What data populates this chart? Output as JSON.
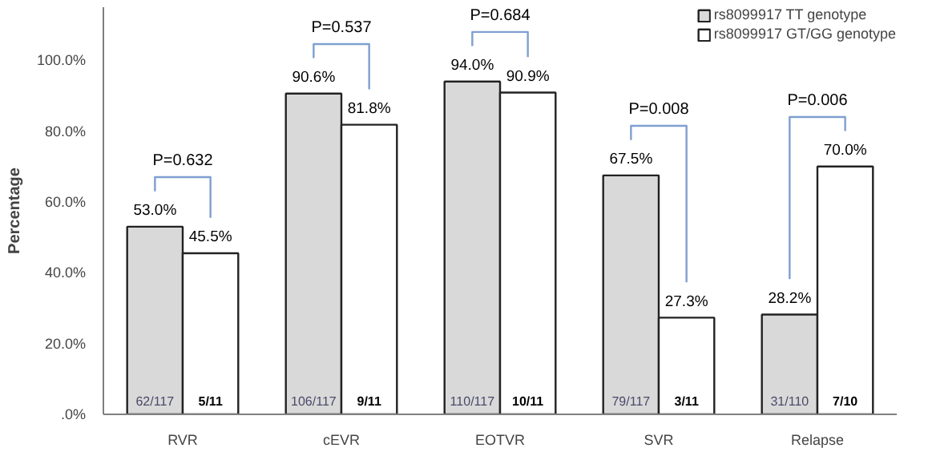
{
  "chart_data": {
    "type": "bar",
    "ylabel": "Percentage",
    "categories": [
      "RVR",
      "cEVR",
      "EOTVR",
      "SVR",
      "Relapse"
    ],
    "series": [
      {
        "name": "rs8099917 TT genotype",
        "color": "#d9d9d9",
        "values": [
          53.0,
          90.6,
          94.0,
          67.5,
          28.2
        ],
        "value_labels": [
          "53.0%",
          "90.6%",
          "94.0%",
          "67.5%",
          "28.2%"
        ]
      },
      {
        "name": "rs8099917 GT/GG genotype",
        "color": "#ffffff",
        "values": [
          45.5,
          81.8,
          90.9,
          27.3,
          70.0
        ],
        "value_labels": [
          "45.5%",
          "81.8%",
          "90.9%",
          "27.3%",
          "70.0%"
        ]
      }
    ],
    "ylim": [
      0,
      115
    ],
    "yticks": [
      {
        "value": 0,
        "label": ".0%"
      },
      {
        "value": 20,
        "label": "20.0%"
      },
      {
        "value": 40,
        "label": "40.0%"
      },
      {
        "value": 60,
        "label": "60.0%"
      },
      {
        "value": 80,
        "label": "80.0%"
      },
      {
        "value": 100,
        "label": "100.0%"
      }
    ],
    "annotations": [
      "P=0.632",
      "P=0.537",
      "P=0.684",
      "P=0.008",
      "P=0.006",
      "62/117",
      "5/11",
      "106/117",
      "9/11",
      "110/117",
      "10/11",
      "79/117",
      "3/11",
      "31/110",
      "7/10"
    ],
    "grid": false,
    "legend": "top right"
  }
}
